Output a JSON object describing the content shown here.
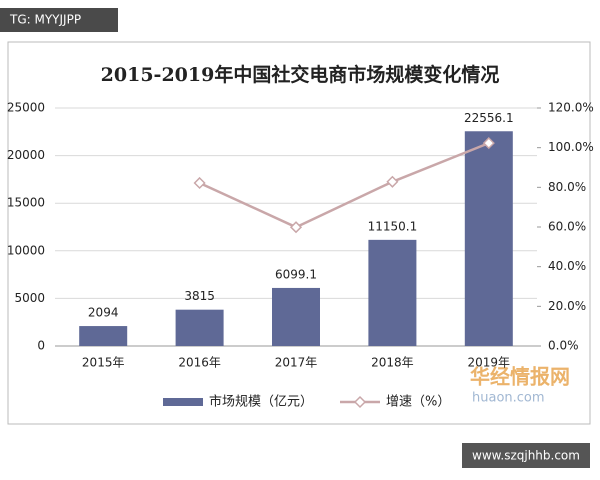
{
  "overlays": {
    "tag": "TG: MYYJJPP",
    "watermark": "华经情报网",
    "watermark_url": "huaon.com",
    "footer_url": "www.szqjhhb.com"
  },
  "chart_data": {
    "type": "bar-line",
    "title": "2015-2019年中国社交电商市场规模变化情况",
    "categories": [
      "2015年",
      "2016年",
      "2017年",
      "2018年",
      "2019年"
    ],
    "series": [
      {
        "name": "市场规模（亿元）",
        "type": "bar",
        "color": "#5f6996",
        "values": [
          2094,
          3815,
          6099.1,
          11150.1,
          22556.1
        ]
      },
      {
        "name": "增速（%）",
        "type": "line",
        "axis": "y2",
        "color": "#c9a7a9",
        "values": [
          null,
          82.2,
          59.9,
          82.8,
          102.3
        ]
      }
    ],
    "ylim": [
      0,
      25000
    ],
    "yticks": [
      0,
      5000,
      10000,
      15000,
      20000,
      25000
    ],
    "y2lim": [
      0,
      120
    ],
    "y2ticks": [
      {
        "value": 0,
        "label": "0.0%"
      },
      {
        "value": 20,
        "label": "20.0%"
      },
      {
        "value": 40,
        "label": "40.0%"
      },
      {
        "value": 60,
        "label": "60.0%"
      },
      {
        "value": 80,
        "label": "80.0%"
      },
      {
        "value": 100,
        "label": "100.0%"
      },
      {
        "value": 120,
        "label": "120.0%"
      }
    ],
    "grid": true,
    "legend": "bottom"
  }
}
